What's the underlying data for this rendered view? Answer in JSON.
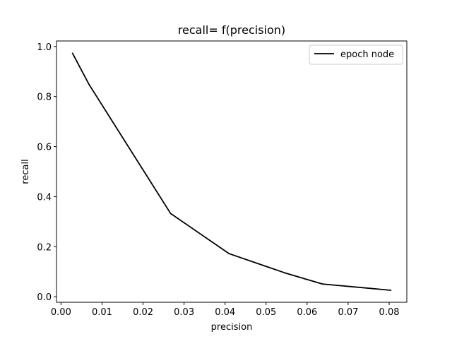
{
  "chart_data": {
    "type": "line",
    "title": "recall= f(precision)",
    "xlabel": "precision",
    "ylabel": "recall",
    "xlim": [
      -0.0011,
      0.0843
    ],
    "ylim": [
      -0.022,
      1.022
    ],
    "xticks": [
      0.0,
      0.01,
      0.02,
      0.03,
      0.04,
      0.05,
      0.06,
      0.07,
      0.08
    ],
    "xtick_labels": [
      "0.00",
      "0.01",
      "0.02",
      "0.03",
      "0.04",
      "0.05",
      "0.06",
      "0.07",
      "0.08"
    ],
    "yticks": [
      0.0,
      0.2,
      0.4,
      0.6,
      0.8,
      1.0
    ],
    "ytick_labels": [
      "0.0",
      "0.2",
      "0.4",
      "0.6",
      "0.8",
      "1.0"
    ],
    "legend_position": "top-right",
    "grid": false,
    "series": [
      {
        "name": "epoch node",
        "color": "#000000",
        "x": [
          0.0028,
          0.0068,
          0.0267,
          0.041,
          0.0545,
          0.0637,
          0.0804
        ],
        "y": [
          0.973,
          0.849,
          0.333,
          0.172,
          0.096,
          0.051,
          0.026
        ]
      }
    ]
  }
}
